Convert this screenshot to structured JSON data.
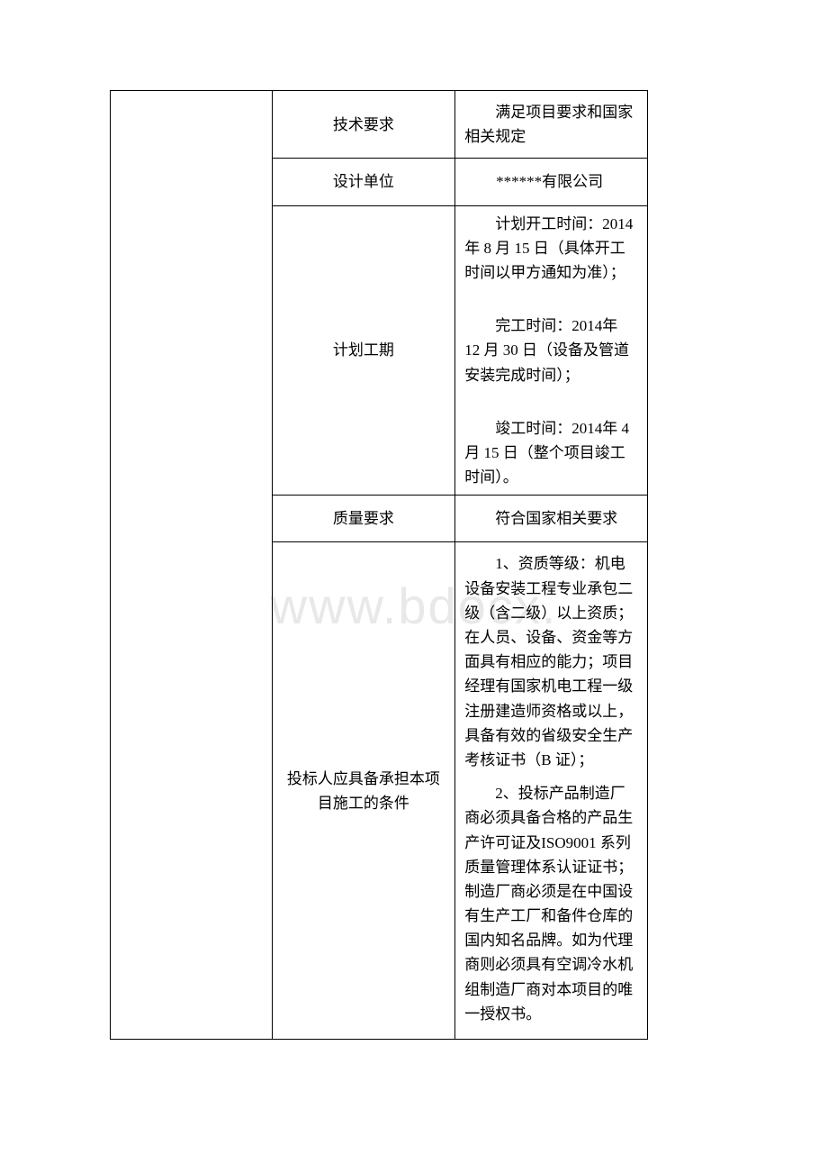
{
  "watermark": "www.bdocx.",
  "rows": {
    "tech_req": {
      "label": "技术要求",
      "value": "满足项目要求和国家相关规定"
    },
    "design_unit": {
      "label": "设计单位",
      "value": "******有限公司"
    },
    "schedule": {
      "label": "计划工期",
      "start": "计划开工时间：2014 年 8 月 15 日（具体开工时间以甲方通知为准）；",
      "finish": "完工时间：2014年 12 月 30 日（设备及管道安装完成时间）；",
      "completion": "竣工时间：2014年 4 月 15 日（整个项目竣工时间）。"
    },
    "quality": {
      "label": "质量要求",
      "value": "符合国家相关要求"
    },
    "bidder": {
      "label": "投标人应具备承担本项目施工的条件",
      "para1": "1、资质等级：机电设备安装工程专业承包二级（含二级）以上资质；在人员、设备、资金等方面具有相应的能力；项目经理有国家机电工程一级注册建造师资格或以上，具备有效的省级安全生产考核证书（B 证）；",
      "para2": "2、投标产品制造厂商必须具备合格的产品生产许可证及ISO9001 系列质量管理体系认证证书；制造厂商必须是在中国设有生产工厂和备件仓库的国内知名品牌。如为代理商则必须具有空调冷水机组制造厂商对本项目的唯一授权书。"
    }
  }
}
